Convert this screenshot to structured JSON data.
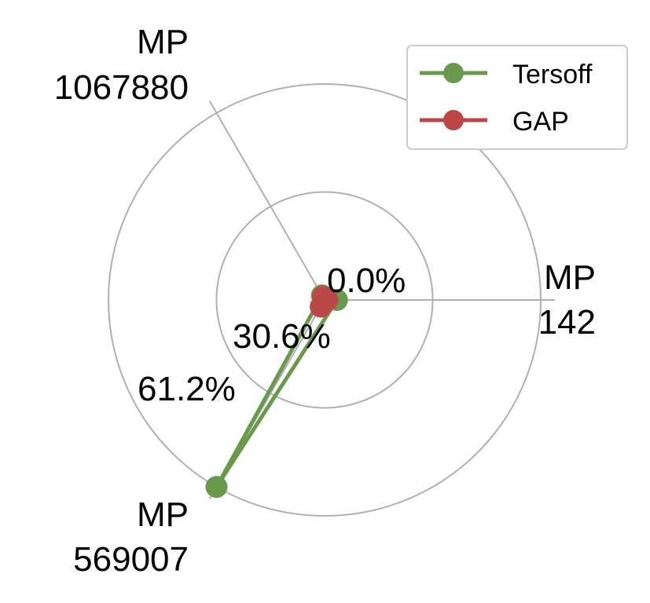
{
  "chart_data": {
    "type": "radar",
    "axes": [
      {
        "label_line1": "MP",
        "label_line2": "142",
        "angle_deg": 0
      },
      {
        "label_line1": "MP",
        "label_line2": "1067880",
        "angle_deg": 120
      },
      {
        "label_line1": "MP",
        "label_line2": "569007",
        "angle_deg": 240
      }
    ],
    "radial_ticks": [
      {
        "value": 0.0,
        "label": "0.0%"
      },
      {
        "value": 30.6,
        "label": "30.6%"
      },
      {
        "value": 61.2,
        "label": "61.2%"
      }
    ],
    "rmax": 61.2,
    "grid": true,
    "legend_position": "top-right",
    "series": [
      {
        "name": "Tersoff",
        "color": "#6a994e",
        "values": [
          3.5,
          1.5,
          61.2
        ]
      },
      {
        "name": "GAP",
        "color": "#bc4749",
        "values": [
          0.8,
          1.0,
          2.2
        ]
      }
    ]
  }
}
